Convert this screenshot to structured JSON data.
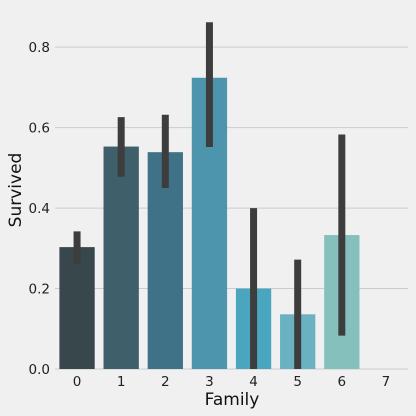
{
  "chart_data": {
    "type": "bar",
    "xlabel": "Family",
    "ylabel": "Survived",
    "categories": [
      "0",
      "1",
      "2",
      "3",
      "4",
      "5",
      "6",
      "7"
    ],
    "values": [
      0.303,
      0.553,
      0.539,
      0.724,
      0.2,
      0.136,
      0.333,
      0
    ],
    "ci_low": [
      0.262,
      0.478,
      0.45,
      0.552,
      0.0,
      0.0,
      0.083,
      0
    ],
    "ci_high": [
      0.342,
      0.626,
      0.632,
      0.862,
      0.4,
      0.272,
      0.583,
      0
    ],
    "ylim": [
      0,
      0.88
    ],
    "yticks": [
      0.0,
      0.2,
      0.4,
      0.6,
      0.8
    ],
    "ytick_labels": [
      "0.0",
      "0.2",
      "0.4",
      "0.6",
      "0.8"
    ],
    "grid": "horizontal",
    "colors": [
      "#37474c",
      "#3f5f6b",
      "#3f7286",
      "#4d95ad",
      "#4aa5bf",
      "#6ab2c1",
      "#86c0bd",
      "#9ed0c6"
    ],
    "errorbar_color": "#3d3d3d"
  }
}
